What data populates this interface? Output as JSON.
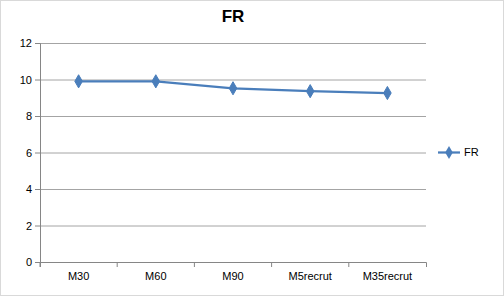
{
  "chart_data": {
    "type": "line",
    "title": "FR",
    "categories": [
      "M30",
      "M60",
      "M90",
      "M5recrut",
      "M35recrut"
    ],
    "series": [
      {
        "name": "FR",
        "color": "#4a7ebb",
        "marker": "diamond",
        "line_style": "solid",
        "values": [
          9.9,
          9.9,
          9.52,
          9.36,
          9.26
        ]
      }
    ],
    "ylim": [
      0,
      12
    ],
    "yticks": [
      0,
      2,
      4,
      6,
      8,
      10,
      12
    ],
    "grid": true,
    "legend": "right"
  }
}
